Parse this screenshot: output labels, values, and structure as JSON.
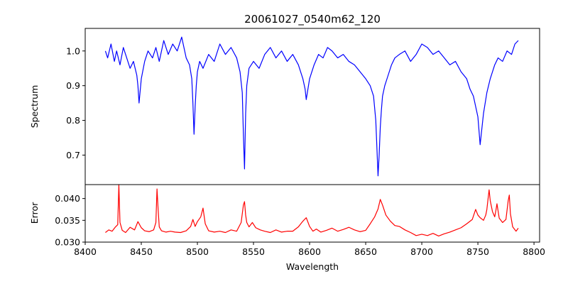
{
  "chart_data": [
    {
      "type": "line",
      "panel": "spectrum",
      "title": "20061027_0540m62_120",
      "xlabel": "",
      "ylabel": "Spectrum",
      "xlim": [
        8400,
        8805
      ],
      "ylim": [
        0.615,
        1.065
      ],
      "y_ticks": [
        0.7,
        0.8,
        0.9,
        1.0
      ],
      "y_tick_labels": [
        "0.7",
        "0.8",
        "0.9",
        "1.0"
      ],
      "color": "#0000ff",
      "grid": false,
      "series": [
        {
          "x": [
            8418,
            8420,
            8423,
            8426,
            8428,
            8431,
            8434,
            8437,
            8440,
            8443,
            8446,
            8447,
            8448,
            8450,
            8453,
            8456,
            8460,
            8463,
            8466,
            8470,
            8474,
            8478,
            8482,
            8486,
            8490,
            8493,
            8495,
            8496,
            8497,
            8498,
            8499,
            8500,
            8502,
            8505,
            8510,
            8515,
            8520,
            8525,
            8530,
            8535,
            8538,
            8540,
            8541,
            8542,
            8543,
            8544,
            8546,
            8550,
            8555,
            8560,
            8565,
            8570,
            8575,
            8580,
            8585,
            8590,
            8594,
            8596,
            8597,
            8598,
            8600,
            8604,
            8608,
            8612,
            8616,
            8620,
            8625,
            8630,
            8635,
            8640,
            8645,
            8650,
            8654,
            8657,
            8659,
            8660,
            8661,
            8662,
            8663,
            8664,
            8665,
            8667,
            8670,
            8673,
            8676,
            8680,
            8685,
            8690,
            8695,
            8700,
            8705,
            8710,
            8715,
            8720,
            8725,
            8730,
            8735,
            8740,
            8743,
            8746,
            8748,
            8750,
            8751,
            8752,
            8753,
            8754,
            8755,
            8758,
            8761,
            8765,
            8768,
            8772,
            8776,
            8780,
            8783,
            8786
          ],
          "y": [
            1.0,
            0.98,
            1.02,
            0.97,
            1.0,
            0.96,
            1.01,
            0.98,
            0.95,
            0.97,
            0.93,
            0.9,
            0.85,
            0.92,
            0.97,
            1.0,
            0.98,
            1.01,
            0.97,
            1.03,
            0.99,
            1.02,
            1.0,
            1.04,
            0.98,
            0.96,
            0.92,
            0.85,
            0.76,
            0.84,
            0.9,
            0.94,
            0.97,
            0.95,
            0.99,
            0.97,
            1.02,
            0.99,
            1.01,
            0.98,
            0.94,
            0.88,
            0.76,
            0.66,
            0.82,
            0.9,
            0.95,
            0.97,
            0.95,
            0.99,
            1.01,
            0.98,
            1.0,
            0.97,
            0.99,
            0.96,
            0.92,
            0.89,
            0.86,
            0.88,
            0.92,
            0.96,
            0.99,
            0.98,
            1.01,
            1.0,
            0.98,
            0.99,
            0.97,
            0.96,
            0.94,
            0.92,
            0.9,
            0.87,
            0.8,
            0.72,
            0.64,
            0.7,
            0.78,
            0.83,
            0.87,
            0.9,
            0.93,
            0.96,
            0.98,
            0.99,
            1.0,
            0.97,
            0.99,
            1.02,
            1.01,
            0.99,
            1.0,
            0.98,
            0.96,
            0.97,
            0.94,
            0.92,
            0.89,
            0.87,
            0.84,
            0.81,
            0.77,
            0.73,
            0.76,
            0.79,
            0.82,
            0.88,
            0.92,
            0.96,
            0.98,
            0.97,
            1.0,
            0.99,
            1.02,
            1.03
          ]
        }
      ]
    },
    {
      "type": "line",
      "panel": "error",
      "title": "",
      "xlabel": "Wavelength",
      "ylabel": "Error",
      "xlim": [
        8400,
        8805
      ],
      "ylim": [
        0.03,
        0.0432
      ],
      "x_ticks": [
        8400,
        8450,
        8500,
        8550,
        8600,
        8650,
        8700,
        8750,
        8800
      ],
      "x_tick_labels": [
        "8400",
        "8450",
        "8500",
        "8550",
        "8600",
        "8650",
        "8700",
        "8750",
        "8800"
      ],
      "y_ticks": [
        0.03,
        0.035,
        0.04
      ],
      "y_tick_labels": [
        "0.030",
        "0.035",
        "0.040"
      ],
      "color": "#ff0000",
      "grid": false,
      "series": [
        {
          "x": [
            8418,
            8421,
            8424,
            8427,
            8429,
            8430,
            8431,
            8433,
            8436,
            8440,
            8444,
            8447,
            8450,
            8453,
            8457,
            8461,
            8463,
            8464,
            8465,
            8466,
            8468,
            8472,
            8476,
            8480,
            8485,
            8490,
            8494,
            8496,
            8498,
            8500,
            8503,
            8505,
            8507,
            8510,
            8515,
            8520,
            8525,
            8530,
            8535,
            8539,
            8541,
            8542,
            8543,
            8544,
            8546,
            8549,
            8552,
            8556,
            8560,
            8565,
            8570,
            8575,
            8580,
            8585,
            8590,
            8594,
            8597,
            8600,
            8603,
            8606,
            8610,
            8615,
            8620,
            8625,
            8630,
            8635,
            8640,
            8645,
            8650,
            8654,
            8658,
            8661,
            8663,
            8665,
            8668,
            8672,
            8676,
            8680,
            8685,
            8690,
            8695,
            8700,
            8705,
            8710,
            8715,
            8720,
            8725,
            8730,
            8735,
            8740,
            8745,
            8748,
            8750,
            8752,
            8755,
            8757,
            8758,
            8759,
            8760,
            8761,
            8763,
            8765,
            8766,
            8767,
            8769,
            8772,
            8775,
            8777,
            8778,
            8779,
            8781,
            8784,
            8786
          ],
          "y": [
            0.0322,
            0.0328,
            0.0325,
            0.0335,
            0.034,
            0.0432,
            0.0345,
            0.0327,
            0.0322,
            0.0334,
            0.0328,
            0.0347,
            0.0333,
            0.0326,
            0.0324,
            0.0328,
            0.0345,
            0.0422,
            0.0375,
            0.0335,
            0.0326,
            0.0323,
            0.0325,
            0.0323,
            0.0322,
            0.0326,
            0.0336,
            0.0352,
            0.0336,
            0.0347,
            0.0358,
            0.0378,
            0.0342,
            0.0326,
            0.0323,
            0.0325,
            0.0322,
            0.0328,
            0.0325,
            0.0345,
            0.0385,
            0.0393,
            0.0362,
            0.0345,
            0.0335,
            0.0345,
            0.0333,
            0.0328,
            0.0325,
            0.0322,
            0.0328,
            0.0323,
            0.0325,
            0.0325,
            0.0335,
            0.0348,
            0.0356,
            0.0336,
            0.0325,
            0.033,
            0.0323,
            0.0327,
            0.0332,
            0.0325,
            0.0329,
            0.0334,
            0.0328,
            0.0324,
            0.0327,
            0.0342,
            0.0358,
            0.0376,
            0.0398,
            0.0385,
            0.0362,
            0.0348,
            0.0338,
            0.0336,
            0.0328,
            0.0322,
            0.0315,
            0.0318,
            0.0315,
            0.032,
            0.0314,
            0.0319,
            0.0323,
            0.0328,
            0.0333,
            0.0342,
            0.0352,
            0.0375,
            0.0362,
            0.0356,
            0.035,
            0.0362,
            0.0375,
            0.0398,
            0.042,
            0.0395,
            0.037,
            0.0358,
            0.0372,
            0.0388,
            0.0355,
            0.0345,
            0.0352,
            0.0395,
            0.0408,
            0.0365,
            0.0335,
            0.0325,
            0.0332
          ]
        }
      ]
    }
  ]
}
